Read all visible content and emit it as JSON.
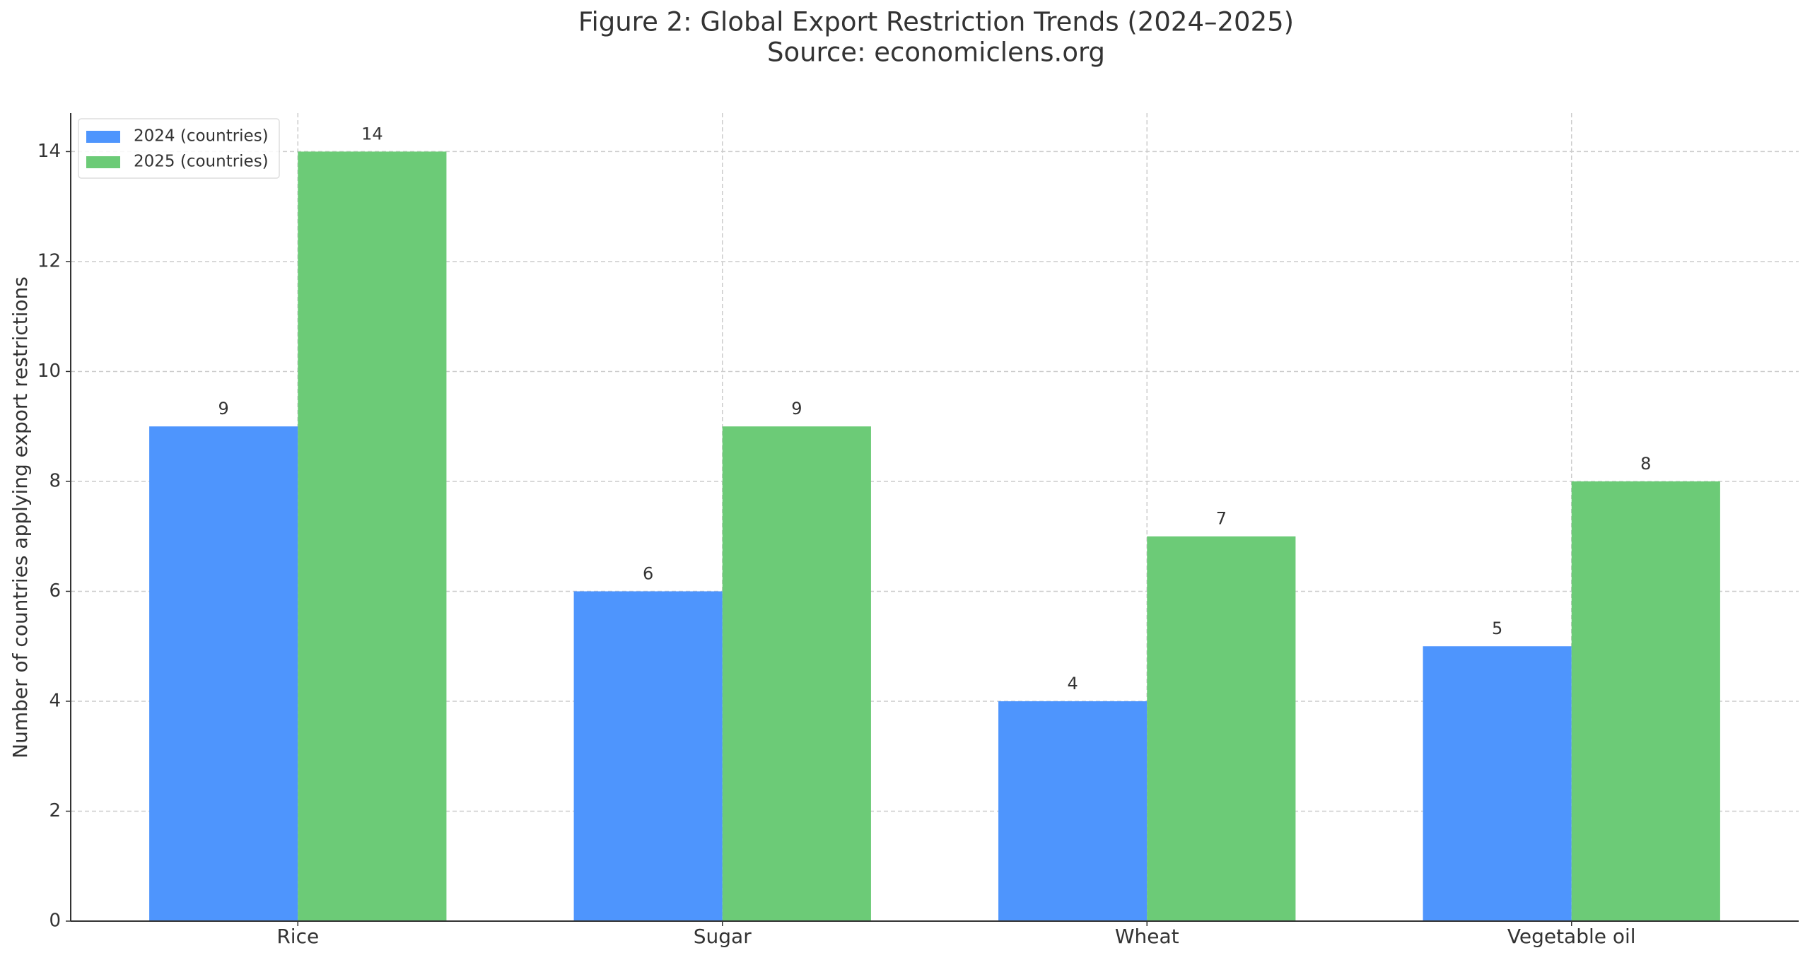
{
  "chart_data": {
    "type": "bar",
    "title": "Figure 2: Global Export Restriction Trends (2024–2025)",
    "subtitle": "Source: economiclens.org",
    "y_label": "Number of countries applying export restrictions",
    "categories": [
      "Rice",
      "Sugar",
      "Wheat",
      "Vegetable oil"
    ],
    "series": [
      {
        "name": "2024 (countries)",
        "color": "#4e95fd",
        "values": [
          9,
          6,
          4,
          5
        ]
      },
      {
        "name": "2025 (countries)",
        "color": "#6ccb77",
        "values": [
          14,
          9,
          7,
          8
        ]
      }
    ],
    "ylim": [
      0,
      14.7
    ],
    "yticks": [
      0,
      2,
      4,
      6,
      8,
      10,
      12,
      14
    ],
    "grid": true,
    "legend": "upper-left"
  }
}
